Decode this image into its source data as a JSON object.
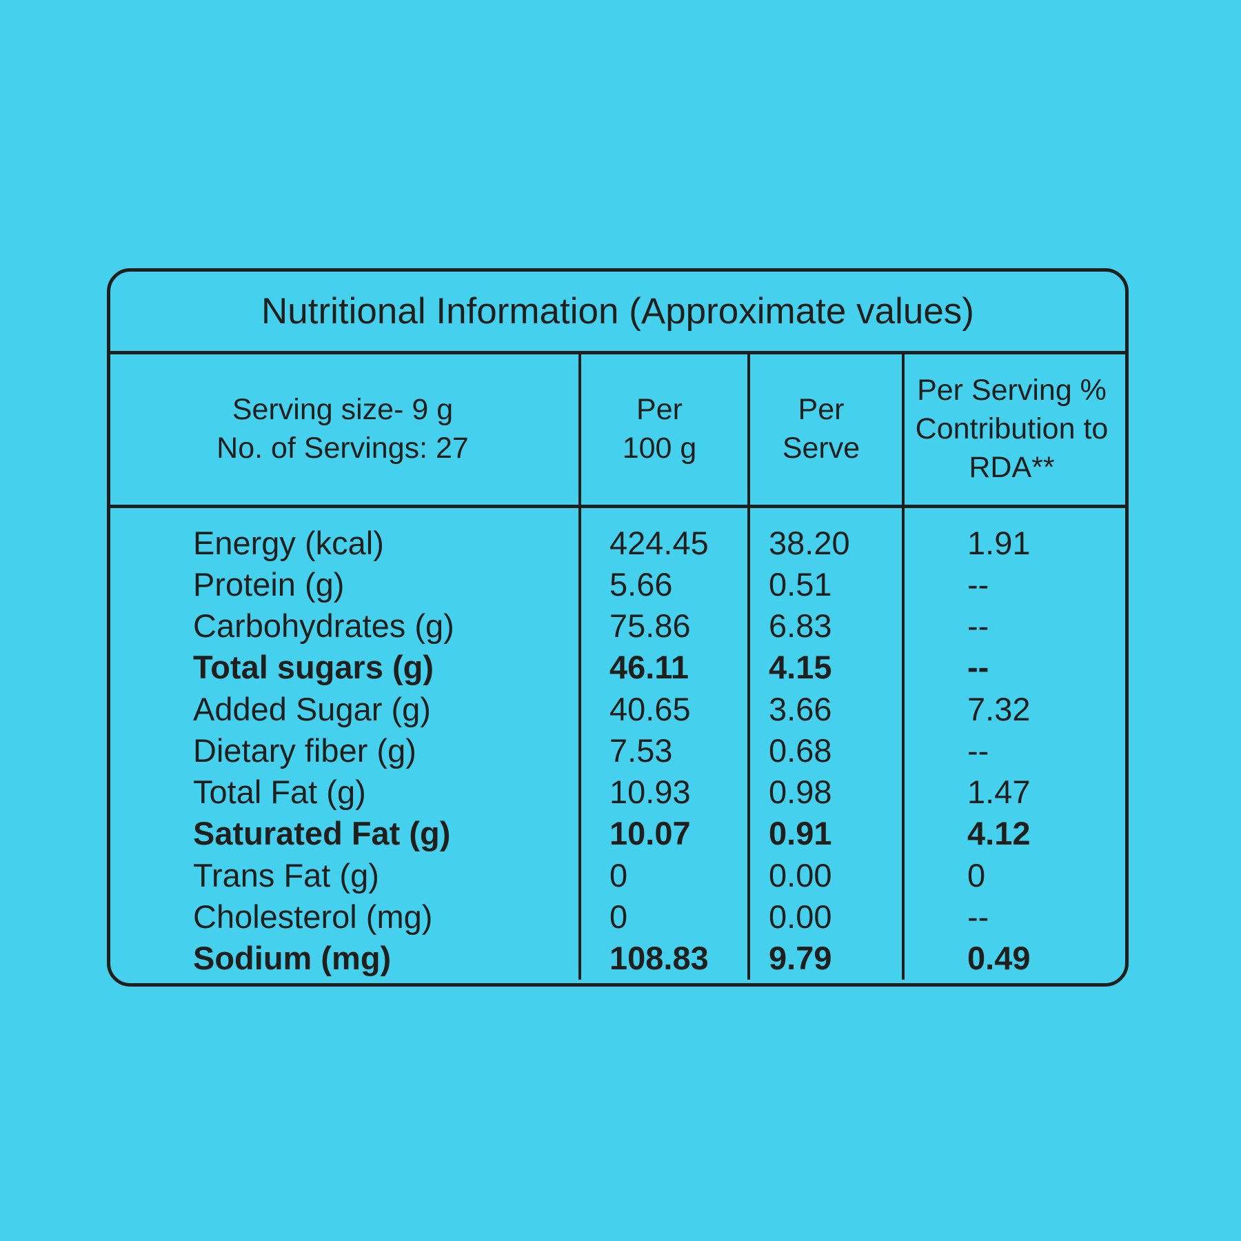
{
  "colors": {
    "background": "#45d0ee",
    "line_and_text": "#1f1f1d"
  },
  "table": {
    "title": "Nutritional Information (Approximate values)",
    "header": {
      "col0": {
        "line1": "Serving size- 9 g",
        "line2": "No. of Servings: 27"
      },
      "col1": {
        "line1": "Per",
        "line2": "100 g"
      },
      "col2": {
        "line1": "Per",
        "line2": "Serve"
      },
      "col3": {
        "line1": "Per Serving %",
        "line2": "Contribution to",
        "line3": "RDA**"
      }
    },
    "rows": [
      {
        "label": "Energy (kcal)",
        "per_100g": "424.45",
        "per_serve": "38.20",
        "rda": "1.91"
      },
      {
        "label": "Protein (g)",
        "per_100g": "5.66",
        "per_serve": "0.51",
        "rda": "--"
      },
      {
        "label": "Carbohydrates (g)",
        "per_100g": "75.86",
        "per_serve": "6.83",
        "rda": "--"
      },
      {
        "label": "Total sugars (g)",
        "per_100g": "46.11",
        "per_serve": "4.15",
        "rda": "--"
      },
      {
        "label": "Added Sugar (g)",
        "per_100g": "40.65",
        "per_serve": "3.66",
        "rda": "7.32"
      },
      {
        "label": "Dietary fiber (g)",
        "per_100g": "7.53",
        "per_serve": "0.68",
        "rda": "--"
      },
      {
        "label": "Total Fat (g)",
        "per_100g": "10.93",
        "per_serve": "0.98",
        "rda": "1.47"
      },
      {
        "label": "Saturated Fat (g)",
        "per_100g": "10.07",
        "per_serve": "0.91",
        "rda": "4.12"
      },
      {
        "label": "Trans Fat (g)",
        "per_100g": "0",
        "per_serve": "0.00",
        "rda": "0"
      },
      {
        "label": "Cholesterol (mg)",
        "per_100g": "0",
        "per_serve": "0.00",
        "rda": "--"
      },
      {
        "label": "Sodium (mg)",
        "per_100g": "108.83",
        "per_serve": "9.79",
        "rda": "0.49"
      }
    ]
  }
}
